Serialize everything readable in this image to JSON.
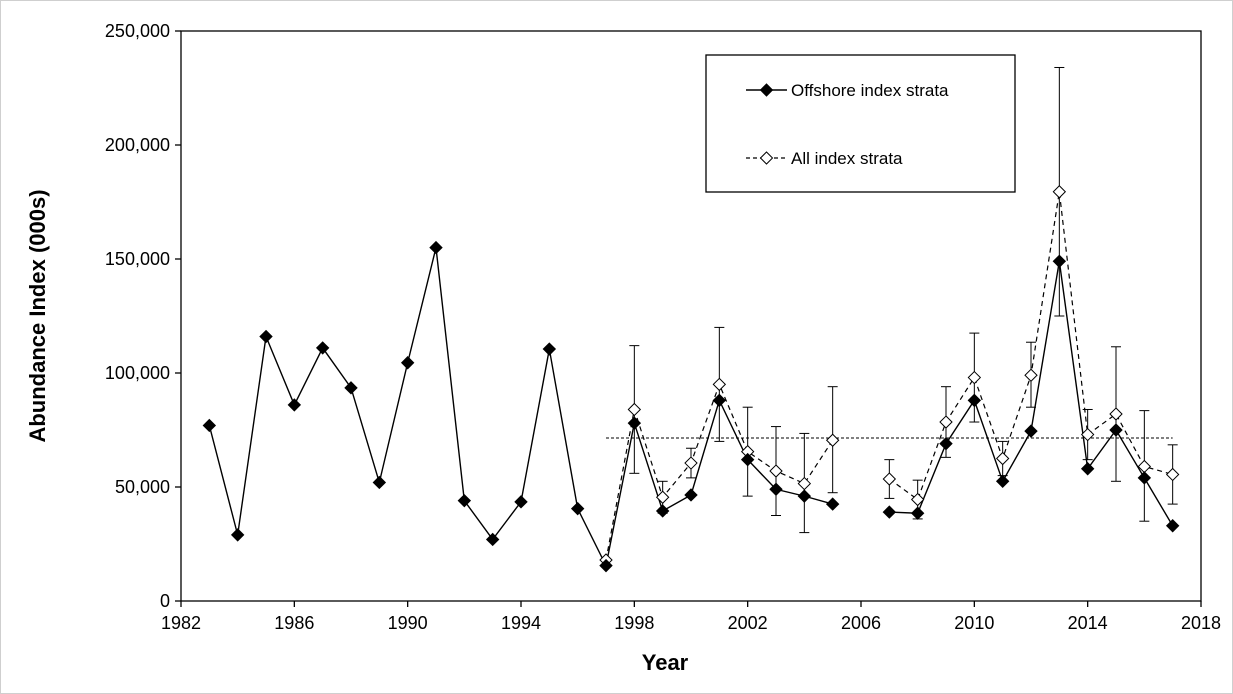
{
  "chart_data": {
    "type": "line",
    "title": "",
    "xlabel": "Year",
    "ylabel": "Abundance Index (000s)",
    "xlim": [
      1982,
      2018
    ],
    "ylim": [
      0,
      250000
    ],
    "x_ticks": [
      "1982",
      "1986",
      "1990",
      "1994",
      "1998",
      "2002",
      "2006",
      "2010",
      "2014",
      "2018"
    ],
    "y_ticks": [
      "0",
      "50,000",
      "100,000",
      "150,000",
      "200,000",
      "250,000"
    ],
    "grid": false,
    "legend_position": "top-right",
    "reference_line": {
      "y": 71500,
      "x_range": [
        1997,
        2017
      ],
      "style": "dotted"
    },
    "series": [
      {
        "name": "Offshore index strata",
        "marker": "filled-diamond",
        "line": "solid",
        "points": [
          {
            "x": 1983,
            "y": 77000
          },
          {
            "x": 1984,
            "y": 29000
          },
          {
            "x": 1985,
            "y": 116000
          },
          {
            "x": 1986,
            "y": 86000
          },
          {
            "x": 1987,
            "y": 111000
          },
          {
            "x": 1988,
            "y": 93500
          },
          {
            "x": 1989,
            "y": 52000
          },
          {
            "x": 1990,
            "y": 104500
          },
          {
            "x": 1991,
            "y": 155000
          },
          {
            "x": 1992,
            "y": 44000
          },
          {
            "x": 1993,
            "y": 27000
          },
          {
            "x": 1994,
            "y": 43500
          },
          {
            "x": 1995,
            "y": 110500
          },
          {
            "x": 1996,
            "y": 40500
          },
          {
            "x": 1997,
            "y": 15500
          },
          {
            "x": 1998,
            "y": 78000
          },
          {
            "x": 1999,
            "y": 39500
          },
          {
            "x": 2000,
            "y": 46500
          },
          {
            "x": 2001,
            "y": 88000
          },
          {
            "x": 2002,
            "y": 62000
          },
          {
            "x": 2003,
            "y": 49000
          },
          {
            "x": 2004,
            "y": 46000
          },
          {
            "x": 2005,
            "y": 42500
          },
          {
            "x": 2007,
            "y": 39000
          },
          {
            "x": 2008,
            "y": 38500
          },
          {
            "x": 2009,
            "y": 69000
          },
          {
            "x": 2010,
            "y": 88000
          },
          {
            "x": 2011,
            "y": 52500
          },
          {
            "x": 2012,
            "y": 74500
          },
          {
            "x": 2013,
            "y": 149000
          },
          {
            "x": 2014,
            "y": 58000
          },
          {
            "x": 2015,
            "y": 75000
          },
          {
            "x": 2016,
            "y": 54000
          },
          {
            "x": 2017,
            "y": 33000
          }
        ]
      },
      {
        "name": "All index strata",
        "marker": "open-diamond",
        "line": "dashed",
        "points": [
          {
            "x": 1997,
            "y": 18000
          },
          {
            "x": 1998,
            "y": 84000,
            "err_lo": 56000,
            "err_hi": 112000
          },
          {
            "x": 1999,
            "y": 45500,
            "err_lo": 38500,
            "err_hi": 52500
          },
          {
            "x": 2000,
            "y": 60500,
            "err_lo": 54000,
            "err_hi": 67000
          },
          {
            "x": 2001,
            "y": 95000,
            "err_lo": 70000,
            "err_hi": 120000
          },
          {
            "x": 2002,
            "y": 65500,
            "err_lo": 46000,
            "err_hi": 85000
          },
          {
            "x": 2003,
            "y": 57000,
            "err_lo": 37500,
            "err_hi": 76500
          },
          {
            "x": 2004,
            "y": 51500,
            "err_lo": 30000,
            "err_hi": 73500
          },
          {
            "x": 2005,
            "y": 70500,
            "err_lo": 47500,
            "err_hi": 94000
          },
          {
            "x": 2007,
            "y": 53500,
            "err_lo": 45000,
            "err_hi": 62000
          },
          {
            "x": 2008,
            "y": 44500,
            "err_lo": 36000,
            "err_hi": 53000
          },
          {
            "x": 2009,
            "y": 78500,
            "err_lo": 63000,
            "err_hi": 94000
          },
          {
            "x": 2010,
            "y": 98000,
            "err_lo": 78500,
            "err_hi": 117500
          },
          {
            "x": 2011,
            "y": 62500,
            "err_lo": 55000,
            "err_hi": 70000
          },
          {
            "x": 2012,
            "y": 99000,
            "err_lo": 85000,
            "err_hi": 113500
          },
          {
            "x": 2013,
            "y": 179500,
            "err_lo": 125000,
            "err_hi": 234000
          },
          {
            "x": 2014,
            "y": 73000,
            "err_lo": 62000,
            "err_hi": 84000
          },
          {
            "x": 2015,
            "y": 82000,
            "err_lo": 52500,
            "err_hi": 111500
          },
          {
            "x": 2016,
            "y": 59000,
            "err_lo": 35000,
            "err_hi": 83500
          },
          {
            "x": 2017,
            "y": 55500,
            "err_lo": 42500,
            "err_hi": 68500
          }
        ]
      }
    ],
    "colors": {
      "line": "#000000",
      "open_marker_fill": "#ffffff",
      "border": "#cccccc"
    }
  }
}
